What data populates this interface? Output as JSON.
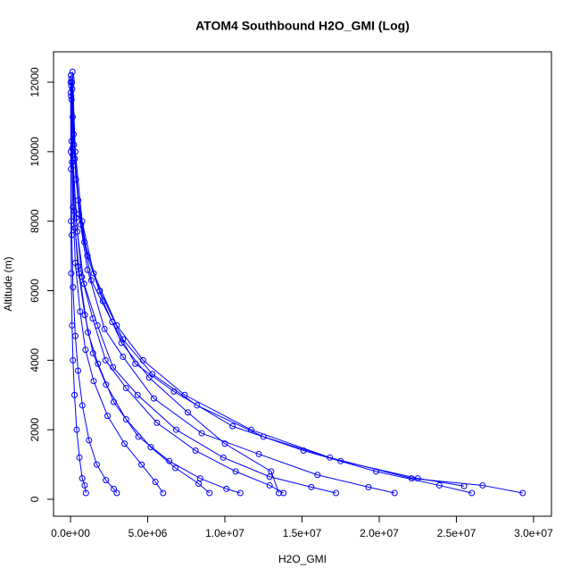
{
  "chart_data": {
    "type": "line",
    "title": "ATOM4 Southbound H2O_GMI (Log)",
    "x_label": "H2O_GMI",
    "y_label": "Altitude (m)",
    "xlim": [
      -1100000.0,
      31160000.0
    ],
    "ylim": [
      -488,
      12874
    ],
    "xticks": [
      {
        "value": 0,
        "label": "0.0e+00"
      },
      {
        "value": 5000000.0,
        "label": "5.0e+06"
      },
      {
        "value": 10000000.0,
        "label": "1.0e+07"
      },
      {
        "value": 15000000.0,
        "label": "1.5e+07"
      },
      {
        "value": 20000000.0,
        "label": "2.0e+07"
      },
      {
        "value": 25000000.0,
        "label": "2.5e+07"
      },
      {
        "value": 30000000.0,
        "label": "3.0e+07"
      }
    ],
    "yticks": [
      0,
      2000,
      4000,
      6000,
      8000,
      10000,
      12000
    ],
    "grid": false,
    "series": [
      {
        "color": "#0000ff",
        "x": [
          125000.0,
          310000.0,
          750000.0,
          1500000.0,
          3000000.0,
          4700000.0,
          7400000.0,
          11700000.0,
          16800000.0,
          22100000.0,
          26700000.0,
          29300000.0
        ],
        "values": [
          12300,
          10000,
          8000,
          6500,
          5000,
          4000,
          3000,
          2000,
          1200,
          600,
          400,
          180
        ]
      },
      {
        "color": "#0000ff",
        "x": [
          110000.0,
          280000.0,
          680000.0,
          1350000.0,
          2700000.0,
          4200000.0,
          6700000.0,
          10500000.0,
          15100000.0,
          19800000.0,
          23900000.0,
          26000000.0
        ],
        "values": [
          11800,
          9800,
          7900,
          6300,
          5100,
          3900,
          3100,
          2100,
          1400,
          800,
          400,
          180
        ]
      },
      {
        "color": "#0000ff",
        "x": [
          90000.0,
          220000.0,
          550000.0,
          1100000.0,
          2200000.0,
          3400000.0,
          5400000.0,
          8500000.0,
          12200000.0,
          16000000.0,
          19300000.0,
          21000000.0
        ],
        "values": [
          12000,
          10200,
          8200,
          6600,
          4900,
          4100,
          2900,
          1900,
          1300,
          700,
          350,
          180
        ]
      },
      {
        "color": "#0000ff",
        "x": [
          70000.0,
          180000.0,
          440000.0,
          880000.0,
          1750000.0,
          2750000.0,
          4350000.0,
          6850000.0,
          9900000.0,
          12900000.0,
          15600000.0,
          17200000.0
        ],
        "values": [
          11500,
          9600,
          7700,
          6200,
          5000,
          3800,
          3000,
          2000,
          1200,
          650,
          350,
          180
        ]
      },
      {
        "color": "#0000ff",
        "x": [
          60000.0,
          150000.0,
          360000.0,
          730000.0,
          1440000.0,
          2270000.0,
          3600000.0,
          5600000.0,
          8100000.0,
          10700000.0,
          12900000.0,
          13800000.0
        ],
        "values": [
          12100,
          9900,
          8100,
          6400,
          5200,
          4000,
          3200,
          2200,
          1400,
          800,
          400,
          180
        ]
      },
      {
        "color": "#0000ff",
        "x": [
          50000.0,
          120000.0,
          290000.0,
          570000.0,
          1130000.0,
          1780000.0,
          2800000.0,
          4400000.0,
          6400000.0,
          8400000.0,
          10100000.0,
          11000000.0
        ],
        "values": [
          11900,
          10100,
          7800,
          6500,
          4800,
          3900,
          2800,
          1800,
          1100,
          600,
          300,
          180
        ]
      },
      {
        "color": "#0000ff",
        "x": [
          40000.0,
          100000.0,
          230000.0,
          470000.0,
          930000.0,
          1460000.0,
          2300000.0,
          3600000.0,
          5200000.0,
          6800000.0,
          8300000.0,
          9000000.0
        ],
        "values": [
          11600,
          9700,
          8300,
          6700,
          5300,
          4200,
          3300,
          2300,
          1500,
          900,
          450,
          180
        ]
      },
      {
        "color": "#0000ff",
        "x": [
          30000.0,
          60000.0,
          160000.0,
          310000.0,
          620000.0,
          970000.0,
          1500000.0,
          2400000.0,
          3500000.0,
          4600000.0,
          5500000.0,
          6000000.0
        ],
        "values": [
          12200,
          10300,
          8400,
          6800,
          5400,
          4300,
          3400,
          2400,
          1600,
          1000,
          500,
          180
        ]
      },
      {
        "color": "#0000ff",
        "x": [
          20000.0,
          30000.0,
          80000.0,
          160000.0,
          310000.0,
          490000.0,
          770000.0,
          1200000.0,
          1700000.0,
          2300000.0,
          2800000.0,
          3000000.0
        ],
        "values": [
          11700,
          9500,
          7600,
          6100,
          4700,
          3700,
          2700,
          1700,
          1000,
          550,
          300,
          180
        ]
      },
      {
        "color": "#0000ff",
        "x": [
          10000.0,
          20000.0,
          30000.0,
          50000.0,
          100000.0,
          160000.0,
          260000.0,
          400000.0,
          580000.0,
          760000.0,
          920000.0,
          1000000.0
        ],
        "values": [
          12000,
          10000,
          8000,
          6500,
          5000,
          4000,
          3000,
          2000,
          1200,
          600,
          400,
          180
        ]
      },
      {
        "color": "#0000ff",
        "x": [
          140000.0,
          350000.0,
          900000.0,
          1900000.0,
          3400000.0,
          5300000.0,
          8200000.0,
          12500000.0,
          17500000.0,
          22500000.0,
          25500000.0
        ],
        "values": [
          11000,
          9200,
          7400,
          6000,
          4600,
          3600,
          2700,
          1800,
          1100,
          600,
          380
        ]
      },
      {
        "color": "#0000ff",
        "x": [
          200000.0,
          500000.0,
          1100000.0,
          2100000.0,
          3300000.0,
          5100000.0,
          7600000.0,
          10000000.0,
          13000000.0,
          13500000.0
        ],
        "values": [
          10500,
          8600,
          7000,
          5700,
          4500,
          3500,
          2500,
          1600,
          800,
          180
        ]
      }
    ]
  }
}
